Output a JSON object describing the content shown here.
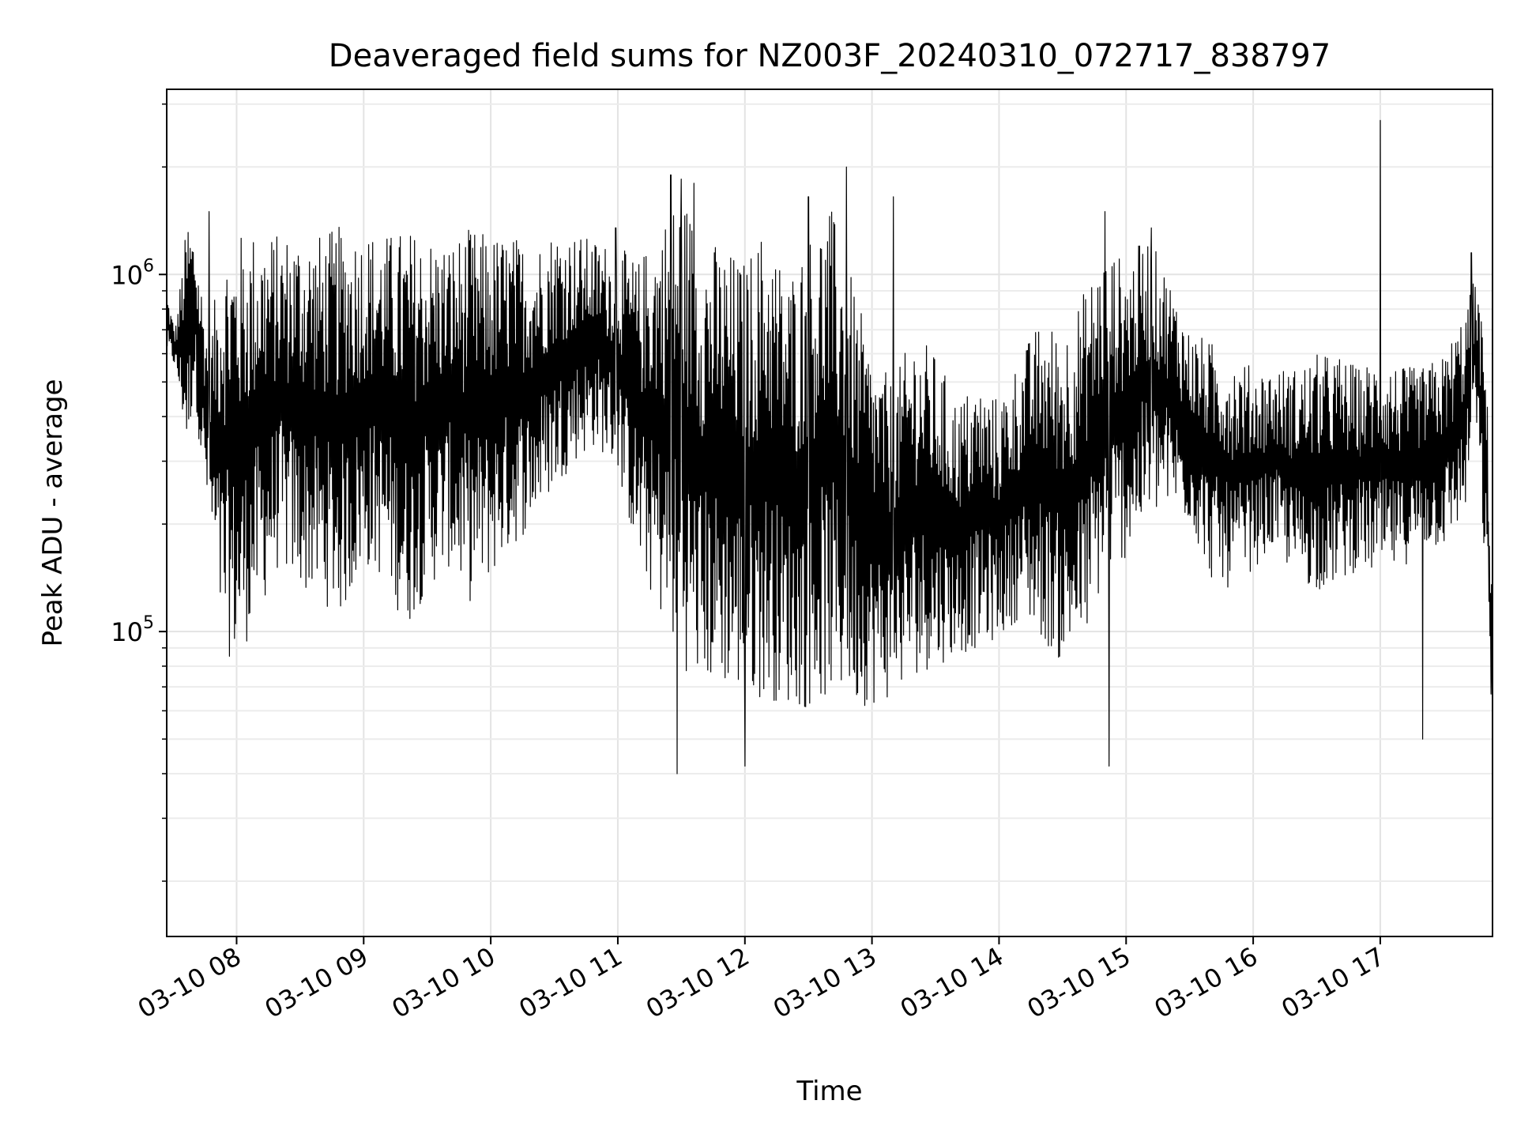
{
  "chart_data": {
    "type": "line",
    "title": "Deaveraged field sums for NZ003F_20240310_072717_838797",
    "xlabel": "Time",
    "ylabel": "Peak ADU - average",
    "yscale": "log",
    "ylim": [
      14000,
      3300000
    ],
    "xlim": [
      "2024-03-10 07:27",
      "2024-03-10 17:53"
    ],
    "x_tick_labels": [
      "03-10 08",
      "03-10 09",
      "03-10 10",
      "03-10 11",
      "03-10 12",
      "03-10 13",
      "03-10 14",
      "03-10 15",
      "03-10 16",
      "03-10 17"
    ],
    "y_tick_labels": [
      {
        "base": "10",
        "exp": "5"
      },
      {
        "base": "10",
        "exp": "6"
      }
    ],
    "grid": true,
    "line_color": "#000000",
    "series": [
      {
        "x": [
          "07:27",
          "07:31",
          "07:37",
          "07:40",
          "07:43",
          "07:47",
          "07:53",
          "08:00",
          "08:10",
          "08:20",
          "08:30",
          "08:40",
          "08:50",
          "09:00",
          "09:10",
          "09:20",
          "09:30",
          "09:40",
          "09:50",
          "10:00",
          "10:10",
          "10:20",
          "10:30",
          "10:40",
          "10:50",
          "11:00",
          "11:10",
          "11:20",
          "11:30",
          "11:40",
          "11:50",
          "12:00",
          "12:10",
          "12:20",
          "12:30",
          "12:40",
          "12:50",
          "13:00",
          "13:10",
          "13:20",
          "13:30",
          "13:40",
          "13:50",
          "14:00",
          "14:10",
          "14:20",
          "14:30",
          "14:40",
          "14:50",
          "15:00",
          "15:10",
          "15:20",
          "15:30",
          "15:40",
          "15:50",
          "16:00",
          "16:10",
          "16:20",
          "16:30",
          "16:40",
          "16:50",
          "17:00",
          "17:10",
          "17:20",
          "17:30",
          "17:40",
          "17:45",
          "17:50",
          "17:53"
        ],
        "low": [
          600000,
          550000,
          300000,
          500000,
          300000,
          200000,
          90000,
          80000,
          110000,
          150000,
          130000,
          120000,
          110000,
          150000,
          140000,
          100000,
          130000,
          150000,
          120000,
          140000,
          170000,
          200000,
          250000,
          300000,
          330000,
          280000,
          150000,
          110000,
          80000,
          70000,
          70000,
          65000,
          65000,
          62000,
          60000,
          65000,
          62000,
          62000,
          65000,
          75000,
          80000,
          85000,
          90000,
          95000,
          110000,
          95000,
          80000,
          90000,
          140000,
          160000,
          200000,
          220000,
          200000,
          140000,
          130000,
          150000,
          170000,
          140000,
          130000,
          135000,
          150000,
          140000,
          150000,
          170000,
          170000,
          210000,
          400000,
          130000,
          50000
        ],
        "high": [
          900000,
          700000,
          1500000,
          1300000,
          1000000,
          650000,
          1200000,
          1300000,
          1350000,
          1300000,
          1350000,
          1300000,
          1380000,
          1350000,
          1300000,
          1350000,
          1300000,
          1250000,
          1350000,
          1300000,
          1300000,
          1200000,
          1350000,
          1300000,
          1250000,
          1200000,
          1100000,
          1400000,
          1750000,
          1300000,
          1200000,
          1100000,
          1400000,
          1000000,
          1300000,
          1600000,
          1000000,
          600000,
          500000,
          700000,
          600000,
          450000,
          500000,
          450000,
          600000,
          750000,
          700000,
          900000,
          1200000,
          1100000,
          1300000,
          1000000,
          700000,
          650000,
          600000,
          550000,
          550000,
          550000,
          600000,
          600000,
          550000,
          600000,
          550000,
          550000,
          600000,
          800000,
          1000000,
          600000,
          120000
        ]
      }
    ],
    "notable_spikes": [
      {
        "x": "07:47",
        "y": 1500000
      },
      {
        "x": "10:59",
        "y": 1350000
      },
      {
        "x": "11:25",
        "y": 1900000
      },
      {
        "x": "11:30",
        "y": 1850000
      },
      {
        "x": "11:36",
        "y": 1800000
      },
      {
        "x": "12:30",
        "y": 1650000
      },
      {
        "x": "12:48",
        "y": 2000000
      },
      {
        "x": "13:10",
        "y": 1650000
      },
      {
        "x": "14:50",
        "y": 1500000
      },
      {
        "x": "15:12",
        "y": 1350000
      },
      {
        "x": "17:00",
        "y": 2700000
      },
      {
        "x": "17:43",
        "y": 1150000
      }
    ],
    "notable_dips": [
      {
        "x": "11:28",
        "y": 40000
      },
      {
        "x": "12:00",
        "y": 42000
      },
      {
        "x": "14:52",
        "y": 42000
      },
      {
        "x": "17:20",
        "y": 50000
      },
      {
        "x": "17:53",
        "y": 55000
      }
    ]
  }
}
